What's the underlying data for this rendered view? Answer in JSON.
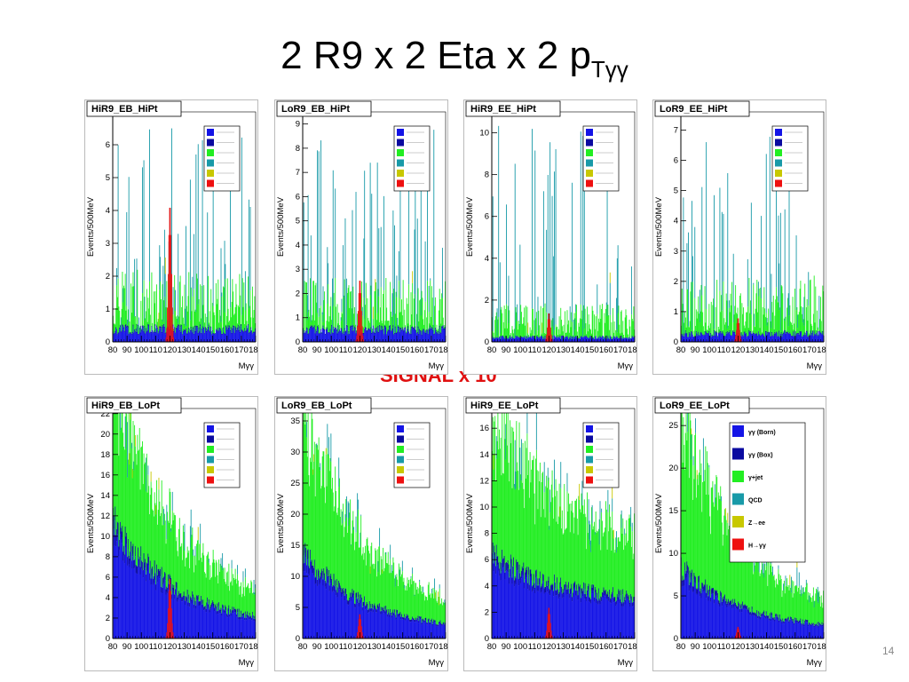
{
  "slide": {
    "title_main": "2 R9 x 2 Eta x 2 p",
    "title_sub": "Tγγ",
    "signal_label": "SIGNAL x 10",
    "page_number": "14"
  },
  "colors": {
    "born": "#1414e6",
    "box": "#0a0aa0",
    "gjet": "#22ee22",
    "qcd": "#189aa8",
    "zee": "#c8c800",
    "higgs": "#ee1010"
  },
  "legend": [
    {
      "key": "born",
      "label": "γγ (Born)"
    },
    {
      "key": "box",
      "label": "γγ (Box)"
    },
    {
      "key": "gjet",
      "label": "γ+jet"
    },
    {
      "key": "qcd",
      "label": "QCD"
    },
    {
      "key": "zee",
      "label": "Z→ee"
    },
    {
      "key": "higgs",
      "label": "H→γγ"
    }
  ],
  "chart_data": [
    {
      "type": "bar",
      "title": "HiR9_EB_HiPt",
      "xlabel": "Mγγ",
      "ylabel": "Events/500MeV",
      "xlim": [
        80,
        180
      ],
      "ylim": [
        0,
        7
      ],
      "yticks": [
        0,
        1,
        2,
        3,
        4,
        5,
        6
      ],
      "xticks": [
        80,
        90,
        100,
        110,
        120,
        130,
        140,
        150,
        160,
        170,
        180
      ],
      "xtick_labels": [
        "80",
        "90",
        "100",
        "110",
        "120",
        "130",
        "140",
        "150",
        "160",
        "170",
        "180"
      ],
      "legend_labels_visible": false,
      "approx": {
        "born_level": 0.35,
        "gjet_level": 1.3,
        "qcd_spike_max": 6.6,
        "higgs_peak": 4.2,
        "higgs_mass": 120
      }
    },
    {
      "type": "bar",
      "title": "LoR9_EB_HiPt",
      "xlabel": "Mγγ",
      "ylabel": "Events/500MeV",
      "xlim": [
        80,
        180
      ],
      "ylim": [
        0,
        9.5
      ],
      "yticks": [
        0,
        1,
        2,
        3,
        4,
        5,
        6,
        7,
        8,
        9
      ],
      "xticks": [
        80,
        90,
        100,
        110,
        120,
        130,
        140,
        150,
        160,
        170,
        180
      ],
      "xtick_labels": [
        "80",
        "90",
        "100",
        "110",
        "120",
        "130",
        "140",
        "150",
        "160",
        "170",
        "180"
      ],
      "legend_labels_visible": false,
      "approx": {
        "born_level": 0.45,
        "gjet_level": 1.6,
        "qcd_spike_max": 8.8,
        "higgs_peak": 2.6,
        "higgs_mass": 120
      }
    },
    {
      "type": "bar",
      "title": "HiR9_EE_HiPt",
      "xlabel": "Mγγ",
      "ylabel": "Events/500MeV",
      "xlim": [
        80,
        180
      ],
      "ylim": [
        0,
        11
      ],
      "yticks": [
        0,
        2,
        4,
        6,
        8,
        10
      ],
      "xticks": [
        80,
        90,
        100,
        110,
        120,
        130,
        140,
        150,
        160,
        170,
        180
      ],
      "xtick_labels": [
        "80",
        "90",
        "100",
        "110",
        "120",
        "130",
        "140",
        "150",
        "160",
        "170",
        "180"
      ],
      "legend_labels_visible": false,
      "approx": {
        "born_level": 0.2,
        "gjet_level": 1.2,
        "qcd_spike_max": 10.5,
        "higgs_peak": 1.4,
        "higgs_mass": 120
      }
    },
    {
      "type": "bar",
      "title": "LoR9_EE_HiPt",
      "xlabel": "Mγγ",
      "ylabel": "Events/500MeV",
      "xlim": [
        80,
        180
      ],
      "ylim": [
        0,
        7.6
      ],
      "yticks": [
        0,
        1,
        2,
        3,
        4,
        5,
        6,
        7
      ],
      "xticks": [
        80,
        90,
        100,
        110,
        120,
        130,
        140,
        150,
        160,
        170,
        180
      ],
      "xtick_labels": [
        "80",
        "90",
        "100",
        "110",
        "120",
        "130",
        "140",
        "150",
        "160",
        "170",
        "180"
      ],
      "legend_labels_visible": false,
      "approx": {
        "born_level": 0.25,
        "gjet_level": 1.4,
        "qcd_spike_max": 7.4,
        "higgs_peak": 0.8,
        "higgs_mass": 120
      }
    },
    {
      "type": "bar",
      "title": "HiR9_EB_LoPt",
      "xlabel": "Mγγ",
      "ylabel": "Events/500MeV",
      "xlim": [
        80,
        180
      ],
      "ylim": [
        0,
        22.5
      ],
      "yticks": [
        0,
        2,
        4,
        6,
        8,
        10,
        12,
        14,
        16,
        18,
        20,
        22
      ],
      "xticks": [
        80,
        90,
        100,
        110,
        120,
        130,
        140,
        150,
        160,
        170,
        180
      ],
      "xtick_labels": [
        "80",
        "90",
        "100",
        "110",
        "120",
        "130",
        "140",
        "150",
        "160",
        "170",
        "180"
      ],
      "legend_labels_visible": false,
      "approx": {
        "born_start": 10.5,
        "born_end": 1.0,
        "gjet_start": 16,
        "gjet_end": 1.6,
        "higgs_peak": 6,
        "higgs_mass": 120
      }
    },
    {
      "type": "bar",
      "title": "LoR9_EB_LoPt",
      "xlabel": "Mγγ",
      "ylabel": "Events/500MeV",
      "xlim": [
        80,
        180
      ],
      "ylim": [
        0,
        37
      ],
      "yticks": [
        0,
        5,
        10,
        15,
        20,
        25,
        30,
        35
      ],
      "xticks": [
        80,
        90,
        100,
        110,
        120,
        130,
        140,
        150,
        160,
        170,
        180
      ],
      "xtick_labels": [
        "80",
        "90",
        "100",
        "110",
        "120",
        "130",
        "140",
        "150",
        "160",
        "170",
        "180"
      ],
      "legend_labels_visible": false,
      "approx": {
        "born_start": 12.5,
        "born_end": 1.0,
        "gjet_start": 26,
        "gjet_end": 2.0,
        "higgs_peak": 4,
        "higgs_mass": 120
      }
    },
    {
      "type": "bar",
      "title": "HiR9_EE_LoPt",
      "xlabel": "Mγγ",
      "ylabel": "Events/500MeV",
      "xlim": [
        80,
        180
      ],
      "ylim": [
        0,
        17.5
      ],
      "yticks": [
        0,
        2,
        4,
        6,
        8,
        10,
        12,
        14,
        16
      ],
      "xticks": [
        80,
        90,
        100,
        110,
        120,
        130,
        140,
        150,
        160,
        170,
        180
      ],
      "xtick_labels": [
        "80",
        "90",
        "100",
        "110",
        "120",
        "130",
        "140",
        "150",
        "160",
        "170",
        "180"
      ],
      "legend_labels_visible": false,
      "approx": {
        "born_start": 5.8,
        "born_end": 2.5,
        "gjet_start": 12,
        "gjet_end": 5,
        "higgs_peak": 2.4,
        "higgs_mass": 120
      }
    },
    {
      "type": "bar",
      "title": "LoR9_EE_LoPt",
      "xlabel": "Mγγ",
      "ylabel": "Events/500MeV",
      "xlim": [
        80,
        180
      ],
      "ylim": [
        0,
        27
      ],
      "yticks": [
        0,
        5,
        10,
        15,
        20,
        25
      ],
      "xticks": [
        80,
        90,
        100,
        110,
        120,
        130,
        140,
        150,
        160,
        170,
        180
      ],
      "xtick_labels": [
        "80",
        "90",
        "100",
        "110",
        "120",
        "130",
        "140",
        "150",
        "160",
        "170",
        "180"
      ],
      "legend_labels_visible": true,
      "approx": {
        "born_start": 7.5,
        "born_end": 0.8,
        "gjet_start": 20,
        "gjet_end": 1.5,
        "higgs_peak": 1.4,
        "higgs_mass": 120
      }
    }
  ]
}
